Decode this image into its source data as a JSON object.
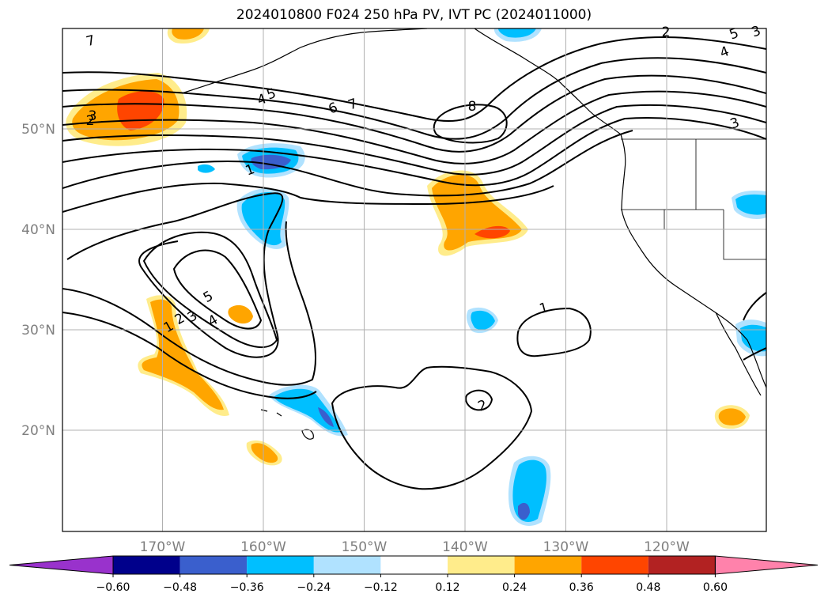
{
  "title": "2024010800 F024 250 hPa PV, IVT PC (2024011000)",
  "chart_data": {
    "type": "contour-map",
    "title": "2024010800 F024 250 hPa PV, IVT PC (2024011000)",
    "grid": true,
    "lon_ticks": [
      {
        "value": -170,
        "label": "170°W"
      },
      {
        "value": -160,
        "label": "160°W"
      },
      {
        "value": -150,
        "label": "150°W"
      },
      {
        "value": -140,
        "label": "140°W"
      },
      {
        "value": -130,
        "label": "130°W"
      },
      {
        "value": -120,
        "label": "120°W"
      }
    ],
    "lat_ticks": [
      {
        "value": 20,
        "label": "20°N"
      },
      {
        "value": 30,
        "label": "30°N"
      },
      {
        "value": 40,
        "label": "40°N"
      },
      {
        "value": 50,
        "label": "50°N"
      }
    ],
    "pv_contour_labels": [
      "7",
      "8",
      "6",
      "7",
      "5",
      "4",
      "3",
      "2",
      "1",
      "5",
      "4",
      "3",
      "2",
      "1",
      "1",
      "2",
      "2",
      "3",
      "4",
      "5",
      "3"
    ],
    "colorbar": {
      "boundaries": [
        -0.6,
        -0.48,
        -0.36,
        -0.24,
        -0.12,
        0.12,
        0.24,
        0.36,
        0.48,
        0.6
      ],
      "labels": [
        "−0.60",
        "−0.48",
        "−0.36",
        "−0.24",
        "−0.12",
        "0.12",
        "0.24",
        "0.36",
        "0.48",
        "0.60"
      ],
      "colors": [
        "#9932cc",
        "#00008b",
        "#3a5fcd",
        "#00bfff",
        "#b0e2ff",
        "#ffffff",
        "#ffec8b",
        "#ffa500",
        "#ff4500",
        "#b22222",
        "#ff82ab"
      ],
      "extend": "both"
    }
  }
}
